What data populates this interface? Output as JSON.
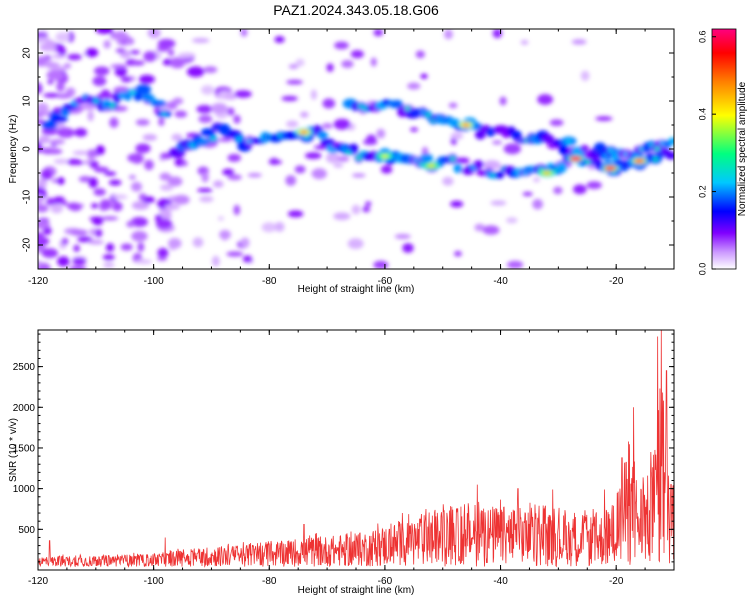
{
  "figure_title": "PAZ1.2024.343.05.18.G06",
  "chart_data": [
    {
      "type": "heatmap",
      "xlabel": "Height of straight line (km)",
      "ylabel": "Frequency (Hz)",
      "xlim": [
        -120,
        -10
      ],
      "ylim": [
        -25,
        25
      ],
      "xticks": [
        -120,
        -100,
        -80,
        -60,
        -40,
        -20
      ],
      "yticks": [
        -20,
        -10,
        0,
        10,
        20
      ],
      "grid": false,
      "colorbar": {
        "label": "Normalized spectral amplitude",
        "range": [
          0.0,
          0.62
        ],
        "ticks": [
          0.0,
          0.2,
          0.4,
          0.6
        ],
        "colors": [
          "#ffffff",
          "#cc99ff",
          "#8000ff",
          "#0000ff",
          "#00c8ff",
          "#00ff80",
          "#ffff00",
          "#ff8000",
          "#ff0000",
          "#ff0080"
        ]
      },
      "ridges": [
        {
          "x": [
            -118,
            -112,
            -106,
            -102,
            -98
          ],
          "y": [
            6,
            10,
            10,
            12,
            8
          ]
        },
        {
          "x": [
            -96,
            -92,
            -88,
            -84,
            -80,
            -76,
            -72,
            -68,
            -64,
            -60,
            -56,
            -52,
            -48,
            -44,
            -40,
            -36,
            -32,
            -28,
            -24,
            -20,
            -16,
            -12,
            -10
          ],
          "y": [
            0,
            2,
            4,
            1,
            3,
            4,
            3,
            0,
            -1,
            -1,
            -2,
            -3,
            -3,
            -4,
            -5,
            -4,
            -5,
            -2,
            -2,
            -4,
            -3,
            -2,
            -1
          ]
        },
        {
          "x": [
            -66,
            -62,
            -58,
            -54,
            -50,
            -46,
            -42,
            -38,
            -34,
            -30,
            -26,
            -22,
            -18,
            -14,
            -10
          ],
          "y": [
            10,
            9,
            9,
            7,
            6,
            5,
            3,
            3,
            2,
            1,
            0,
            -1,
            -2,
            0,
            1
          ]
        }
      ],
      "peaks": [
        {
          "x": -27,
          "y": -2,
          "amp": 0.62
        },
        {
          "x": -21,
          "y": -4,
          "amp": 0.6
        },
        {
          "x": -16,
          "y": -2.5,
          "amp": 0.55
        },
        {
          "x": -46,
          "y": 5,
          "amp": 0.5
        },
        {
          "x": -74,
          "y": 3.5,
          "amp": 0.5
        },
        {
          "x": -32,
          "y": -5,
          "amp": 0.45
        },
        {
          "x": -52,
          "y": -3.5,
          "amp": 0.42
        },
        {
          "x": -60,
          "y": -1.5,
          "amp": 0.4
        }
      ]
    },
    {
      "type": "line",
      "xlabel": "Height of straight line (km)",
      "ylabel": "SNR (10 * v/v)",
      "xlim": [
        -120,
        -10
      ],
      "ylim": [
        0,
        2950
      ],
      "xticks": [
        -120,
        -100,
        -80,
        -60,
        -40,
        -20
      ],
      "yticks": [
        500,
        1000,
        1500,
        2000,
        2500
      ],
      "grid": false,
      "series": [
        {
          "color": "#ee3333",
          "envelope_x": [
            -120,
            -110,
            -100,
            -95,
            -90,
            -85,
            -80,
            -75,
            -70,
            -65,
            -60,
            -55,
            -50,
            -45,
            -40,
            -35,
            -30,
            -25,
            -22,
            -20,
            -18,
            -16,
            -14,
            -12,
            -11,
            -10
          ],
          "envelope_y": [
            170,
            180,
            200,
            250,
            290,
            310,
            330,
            400,
            420,
            450,
            550,
            650,
            750,
            780,
            800,
            760,
            700,
            680,
            700,
            900,
            1500,
            1100,
            1200,
            2400,
            1600,
            1000
          ],
          "peaks": [
            {
              "x": -118,
              "y": 360
            },
            {
              "x": -98,
              "y": 400
            },
            {
              "x": -74,
              "y": 560
            },
            {
              "x": -57,
              "y": 700
            },
            {
              "x": -44,
              "y": 1050
            },
            {
              "x": -37,
              "y": 1000
            },
            {
              "x": -31,
              "y": 990
            },
            {
              "x": -22,
              "y": 990
            },
            {
              "x": -19,
              "y": 1380
            },
            {
              "x": -17,
              "y": 2000
            },
            {
              "x": -14,
              "y": 1450
            },
            {
              "x": -12.8,
              "y": 2870
            },
            {
              "x": -12.2,
              "y": 2950
            },
            {
              "x": -11.3,
              "y": 2450
            },
            {
              "x": -10.5,
              "y": 1050
            }
          ]
        }
      ]
    }
  ]
}
